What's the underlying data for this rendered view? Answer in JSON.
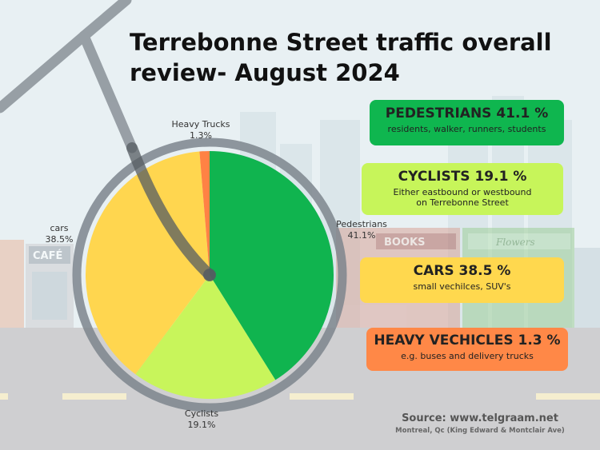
{
  "title_line1": "Terrebonne Street traffic overall",
  "title_line2": "review- August 2024",
  "chart_data": {
    "type": "pie",
    "title": "Terrebonne Street traffic overall review- August 2024",
    "slices": [
      {
        "label": "Pedestrians",
        "value": 41.1,
        "value_text": "41.1%",
        "color": "#10b44f"
      },
      {
        "label": "Cyclists",
        "value": 19.1,
        "value_text": "19.1%",
        "color": "#c8f55b"
      },
      {
        "label": "cars",
        "value": 38.5,
        "value_text": "38.5%",
        "color": "#ffd64f"
      },
      {
        "label": "Heavy Trucks",
        "value": 1.3,
        "value_text": "1.3%",
        "color": "#ff8244"
      }
    ]
  },
  "cards": {
    "pedestrians": {
      "heading": "PEDESTRIANS 41.1 %",
      "sub": "residents, walker, runners, students"
    },
    "cyclists": {
      "heading": "CYCLISTS 19.1 %",
      "sub1": "Either eastbound or westbound",
      "sub2": "on Terrebonne Street"
    },
    "cars": {
      "heading": "CARS 38.5 %",
      "sub": "small vechilces, SUV's"
    },
    "heavy": {
      "heading": "HEAVY VECHICLES 1.3 %",
      "sub": "e.g. buses and delivery trucks"
    }
  },
  "background_signs": {
    "cafe": "CAFÉ",
    "books": "BOOKS",
    "flowers": "Flowers"
  },
  "source": {
    "line1": "Source: www.telgraam.net",
    "line2": "Montreal, Qc (King Edward & Montclair Ave)"
  }
}
